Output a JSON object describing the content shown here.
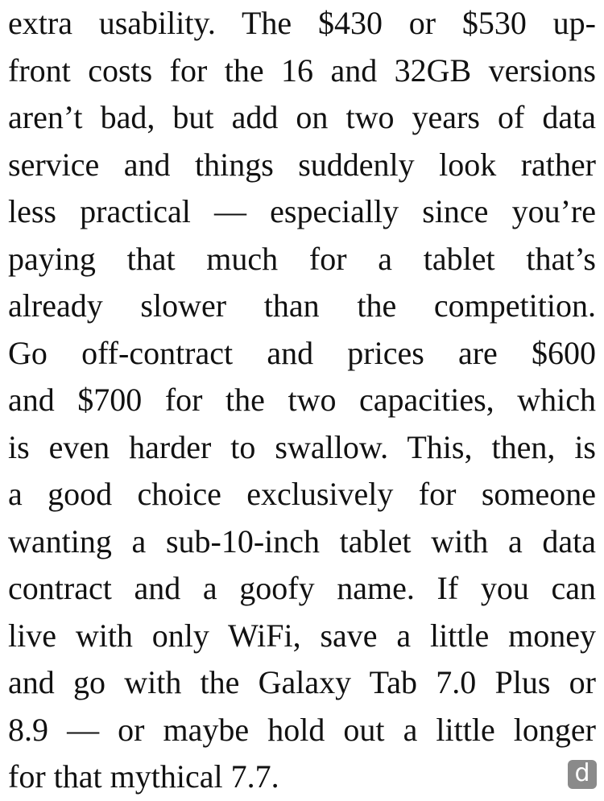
{
  "article": {
    "lines": [
      "extra usability. The $430 or $530 up-",
      "front costs for the 16 and 32GB versions",
      "aren’t bad, but add on two years of data",
      "service and things suddenly look rather",
      "less practical — especially since you’re",
      "paying that much for a tablet that’s",
      "already slower than the competition.",
      "Go off-contract and prices are $600",
      "and $700 for the two capacities, which",
      "is even harder to swallow. This, then, is",
      "a good choice exclusively for someone",
      "wanting a sub-10-inch tablet with a data",
      "contract and a goofy name. If you can",
      "live with only WiFi, save a little money",
      "and go with the Galaxy Tab 7.0 Plus or",
      "8.9 — or maybe hold out a little longer",
      "for that mythical 7.7."
    ],
    "logo": "d"
  }
}
